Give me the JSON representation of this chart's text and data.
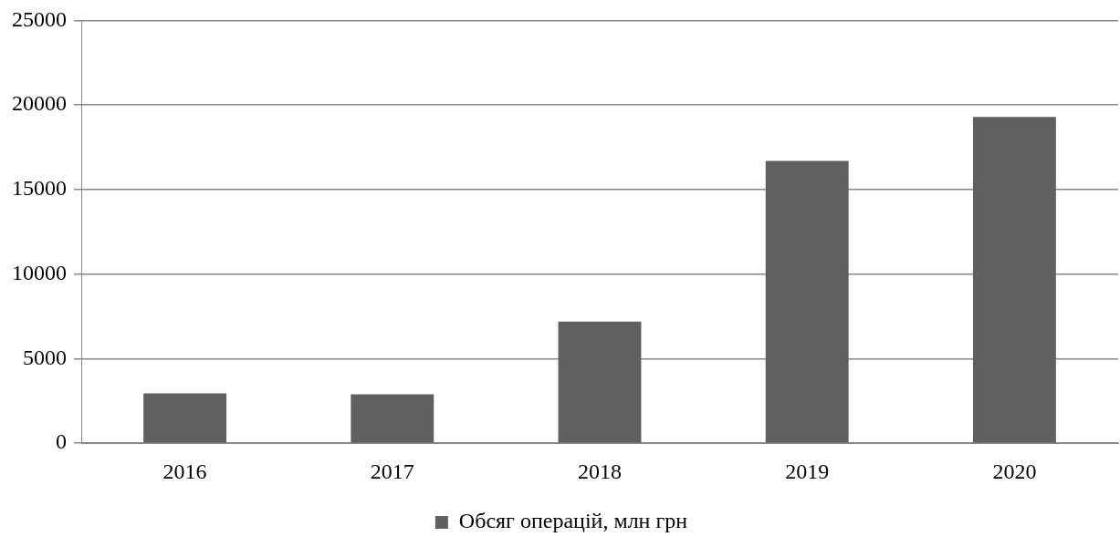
{
  "chart_data": {
    "type": "bar",
    "categories": [
      "2016",
      "2017",
      "2018",
      "2019",
      "2020"
    ],
    "series": [
      {
        "name": "Обсяг операцій, млн грн",
        "color": "#606060",
        "values": [
          2950,
          2900,
          7200,
          16700,
          19300
        ]
      }
    ],
    "ylim": [
      0,
      25000
    ],
    "yticks": [
      0,
      5000,
      10000,
      15000,
      20000,
      25000
    ],
    "grid": "y",
    "legend": "bottom"
  }
}
